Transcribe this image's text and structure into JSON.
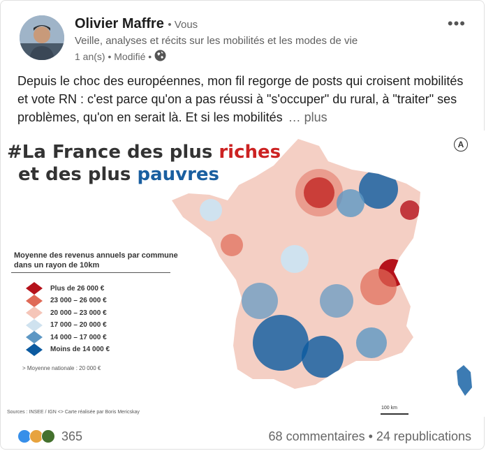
{
  "author": {
    "name": "Olivier Maffre",
    "badge": "• Vous",
    "headline": "Veille, analyses et récits sur les mobilités et les modes de vie",
    "meta": "1 an(s) • Modifié •"
  },
  "post": {
    "text": "Depuis le choc des européennes, mon fil regorge de posts qui croisent mobilités et vote RN : c'est parce qu'on a pas réussi à \"s'occuper\" du rural, à \"traiter\" ses problèmes, qu'on en serait là. Et si les mobilités",
    "see_more": "… plus"
  },
  "map_image": {
    "title_part1": "#La France des plus ",
    "title_word1": "riches",
    "title_part2": "et des plus ",
    "title_word2": "pauvres",
    "legend_title": "Moyenne des revenus annuels par commune dans un rayon de 10km",
    "legend": [
      {
        "label": "Plus de 26 000 €",
        "color": "#b5121b"
      },
      {
        "label": "23 000 – 26 000 €",
        "color": "#df6a57"
      },
      {
        "label": "20 000 – 23 000 €",
        "color": "#f5c5b8"
      },
      {
        "label": "17 000 – 20 000 €",
        "color": "#cfe2ef"
      },
      {
        "label": "14 000 – 17 000 €",
        "color": "#5d97c4"
      },
      {
        "label": "Moins de 14 000 €",
        "color": "#0b5aa0"
      }
    ],
    "national_avg": "> Moyenne nationale : 20 000 €",
    "sources": "Sources : INSEE / IGN    <>  Carte réalisée par Boris Mericskay",
    "scale": "100 km",
    "corner_badge": "A"
  },
  "footer": {
    "reaction_count": "365",
    "stats": "68 commentaires • 24 republications"
  },
  "icons": {
    "more": "more-horizontal-icon",
    "visibility": "globe-icon"
  }
}
